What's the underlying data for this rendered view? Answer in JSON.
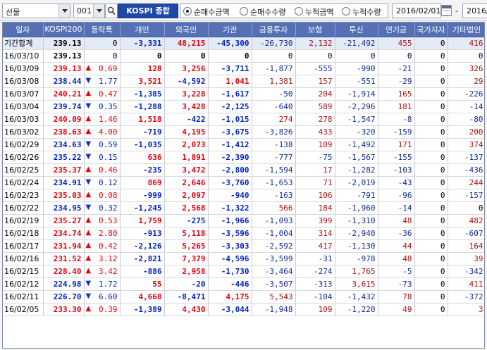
{
  "toolbar": {
    "market": "선물",
    "code": "001",
    "name": "KOSPI 종합",
    "radios": [
      "순매수금액",
      "순매수수량",
      "누적금액",
      "누적수량"
    ],
    "selected_radio": 0,
    "date_from": "2016/02/01",
    "date_sep": "-",
    "date_to": "2016/"
  },
  "table": {
    "columns": [
      "일자",
      "KOSPI200",
      "등락폭",
      "개인",
      "외국인",
      "기관",
      "금융투자",
      "보험",
      "투신",
      "연기금",
      "국가지자",
      "기타법인"
    ],
    "summary": {
      "date": "기간합계",
      "kospi": "239.13",
      "change": "0",
      "values": [
        "-3,331",
        "48,215",
        "-45,300",
        "-26,730",
        "2,132",
        "-21,492",
        "455",
        "0",
        "416"
      ]
    },
    "rows": [
      {
        "date": "16/03/10",
        "kospi": "239.13",
        "dir": "",
        "change": "0",
        "values": [
          "0",
          "0",
          "0",
          "0",
          "0",
          "0",
          "0",
          "0",
          "0"
        ]
      },
      {
        "date": "16/03/09",
        "kospi": "239.13",
        "dir": "up",
        "change": "0.69",
        "values": [
          "128",
          "3,256",
          "-3,711",
          "-1,877",
          "-555",
          "-990",
          "-21",
          "0",
          "326"
        ]
      },
      {
        "date": "16/03/08",
        "kospi": "238.44",
        "dir": "dn",
        "change": "1.77",
        "values": [
          "3,521",
          "-4,592",
          "1,041",
          "1,381",
          "157",
          "-551",
          "-29",
          "0",
          "29"
        ]
      },
      {
        "date": "16/03/07",
        "kospi": "240.21",
        "dir": "up",
        "change": "0.47",
        "values": [
          "-1,385",
          "3,228",
          "-1,617",
          "-50",
          "204",
          "-1,914",
          "165",
          "0",
          "-226"
        ]
      },
      {
        "date": "16/03/04",
        "kospi": "239.74",
        "dir": "dn",
        "change": "0.35",
        "values": [
          "-1,288",
          "3,428",
          "-2,125",
          "-640",
          "589",
          "-2,296",
          "181",
          "0",
          "-14"
        ]
      },
      {
        "date": "16/03/03",
        "kospi": "240.09",
        "dir": "up",
        "change": "1.46",
        "values": [
          "1,518",
          "-422",
          "-1,015",
          "274",
          "278",
          "-1,547",
          "-8",
          "0",
          "-80"
        ]
      },
      {
        "date": "16/03/02",
        "kospi": "238.63",
        "dir": "up",
        "change": "4.00",
        "values": [
          "-719",
          "4,195",
          "-3,675",
          "-3,826",
          "433",
          "-320",
          "-159",
          "0",
          "200"
        ]
      },
      {
        "date": "16/02/29",
        "kospi": "234.63",
        "dir": "dn",
        "change": "0.59",
        "values": [
          "-1,035",
          "2,073",
          "-1,412",
          "-138",
          "109",
          "-1,492",
          "171",
          "0",
          "374"
        ]
      },
      {
        "date": "16/02/26",
        "kospi": "235.22",
        "dir": "dn",
        "change": "0.15",
        "values": [
          "636",
          "1,891",
          "-2,390",
          "-777",
          "-75",
          "-1,567",
          "-155",
          "0",
          "-137"
        ]
      },
      {
        "date": "16/02/25",
        "kospi": "235.37",
        "dir": "up",
        "change": "0.46",
        "values": [
          "-235",
          "3,472",
          "-2,800",
          "-1,594",
          "17",
          "-1,282",
          "-103",
          "0",
          "-436"
        ]
      },
      {
        "date": "16/02/24",
        "kospi": "234.91",
        "dir": "dn",
        "change": "0.12",
        "values": [
          "869",
          "2,646",
          "-3,760",
          "-1,653",
          "71",
          "-2,019",
          "-43",
          "0",
          "244"
        ]
      },
      {
        "date": "16/02/23",
        "kospi": "235.03",
        "dir": "up",
        "change": "0.08",
        "values": [
          "-999",
          "2,097",
          "-940",
          "-163",
          "106",
          "-791",
          "-96",
          "0",
          "-157"
        ]
      },
      {
        "date": "16/02/22",
        "kospi": "234.95",
        "dir": "dn",
        "change": "0.32",
        "values": [
          "-1,245",
          "2,568",
          "-1,322",
          "566",
          "184",
          "-1,960",
          "-14",
          "0",
          "0"
        ]
      },
      {
        "date": "16/02/19",
        "kospi": "235.27",
        "dir": "up",
        "change": "0.53",
        "values": [
          "1,759",
          "-275",
          "-1,966",
          "-1,093",
          "399",
          "-1,310",
          "48",
          "0",
          "482"
        ]
      },
      {
        "date": "16/02/18",
        "kospi": "234.74",
        "dir": "up",
        "change": "2.80",
        "values": [
          "-913",
          "5,118",
          "-3,596",
          "-1,004",
          "314",
          "-2,940",
          "-36",
          "0",
          "-607"
        ]
      },
      {
        "date": "16/02/17",
        "kospi": "231.94",
        "dir": "up",
        "change": "0.42",
        "values": [
          "-2,126",
          "5,265",
          "-3,303",
          "-2,592",
          "417",
          "-1,130",
          "44",
          "0",
          "164"
        ]
      },
      {
        "date": "16/02/16",
        "kospi": "231.52",
        "dir": "up",
        "change": "3.12",
        "values": [
          "-2,821",
          "7,379",
          "-4,596",
          "-3,599",
          "-31",
          "-978",
          "48",
          "0",
          "39"
        ]
      },
      {
        "date": "16/02/15",
        "kospi": "228.40",
        "dir": "up",
        "change": "3.42",
        "values": [
          "-886",
          "2,958",
          "-1,730",
          "-3,464",
          "-274",
          "1,765",
          "-5",
          "0",
          "-342"
        ]
      },
      {
        "date": "16/02/12",
        "kospi": "224.98",
        "dir": "dn",
        "change": "1.72",
        "values": [
          "55",
          "-20",
          "-446",
          "-3,507",
          "-313",
          "3,615",
          "-73",
          "0",
          "411"
        ]
      },
      {
        "date": "16/02/11",
        "kospi": "226.70",
        "dir": "dn",
        "change": "6.60",
        "values": [
          "4,668",
          "-8,471",
          "4,175",
          "5,543",
          "-104",
          "-1,432",
          "78",
          "0",
          "-372"
        ]
      },
      {
        "date": "16/02/05",
        "kospi": "233.30",
        "dir": "up",
        "change": "0.39",
        "values": [
          "-1,389",
          "4,430",
          "-3,044",
          "-1,948",
          "109",
          "-1,220",
          "49",
          "0",
          "3"
        ]
      }
    ]
  },
  "colors": {
    "up": "#e8000b",
    "down": "#0022cc",
    "header": "#5570b5",
    "name_box": "#1e49a7"
  }
}
